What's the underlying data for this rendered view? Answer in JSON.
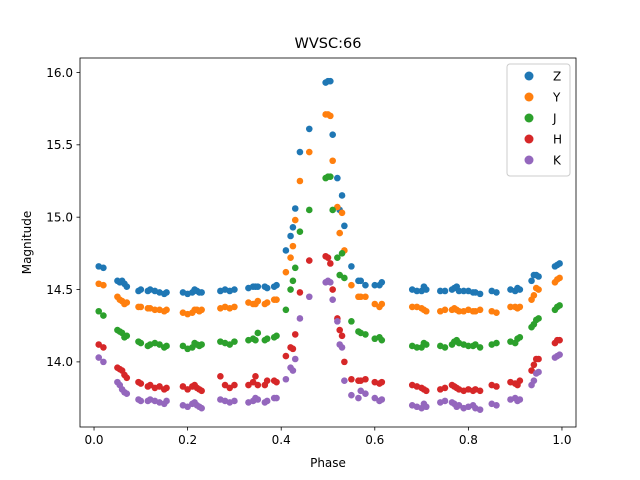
{
  "chart_data": {
    "type": "scatter",
    "title": "WVSC:66",
    "xlabel": "Phase",
    "ylabel": "Magnitude",
    "xlim": [
      -0.03,
      1.03
    ],
    "ylim": [
      13.55,
      16.1
    ],
    "xticks": [
      0.0,
      0.2,
      0.4,
      0.6,
      0.8,
      1.0
    ],
    "xtick_labels": [
      "0.0",
      "0.2",
      "0.4",
      "0.6",
      "0.8",
      "1.0"
    ],
    "yticks": [
      14.0,
      14.5,
      15.0,
      15.5,
      16.0
    ],
    "ytick_labels": [
      "14.0",
      "14.5",
      "15.0",
      "15.5",
      "16.0"
    ],
    "grid": false,
    "legend_position": "top-right",
    "phases": [
      0.01,
      0.02,
      0.05,
      0.055,
      0.06,
      0.065,
      0.07,
      0.095,
      0.1,
      0.115,
      0.12,
      0.13,
      0.14,
      0.15,
      0.155,
      0.19,
      0.2,
      0.21,
      0.215,
      0.22,
      0.225,
      0.23,
      0.27,
      0.28,
      0.29,
      0.3,
      0.33,
      0.34,
      0.345,
      0.35,
      0.365,
      0.37,
      0.385,
      0.39,
      0.41,
      0.42,
      0.425,
      0.43,
      0.44,
      0.46,
      0.495,
      0.5,
      0.505,
      0.51,
      0.52,
      0.525,
      0.53,
      0.535,
      0.55,
      0.565,
      0.57,
      0.58,
      0.6,
      0.61,
      0.615,
      0.68,
      0.69,
      0.7,
      0.705,
      0.71,
      0.74,
      0.75,
      0.765,
      0.77,
      0.775,
      0.78,
      0.79,
      0.8,
      0.81,
      0.815,
      0.825,
      0.85,
      0.86,
      0.89,
      0.9,
      0.905,
      0.91,
      0.935,
      0.94,
      0.945,
      0.95,
      0.985,
      0.99,
      0.995
    ],
    "series": [
      {
        "name": "Z",
        "color": "#1f77b4",
        "values": [
          14.66,
          14.65,
          14.56,
          14.55,
          14.56,
          14.54,
          14.52,
          14.49,
          14.5,
          14.49,
          14.5,
          14.49,
          14.48,
          14.47,
          14.48,
          14.48,
          14.47,
          14.48,
          14.5,
          14.49,
          14.48,
          14.48,
          14.49,
          14.5,
          14.49,
          14.5,
          14.51,
          14.52,
          14.52,
          14.52,
          14.52,
          14.51,
          14.52,
          14.53,
          14.77,
          14.87,
          14.93,
          15.06,
          15.45,
          15.61,
          15.93,
          15.94,
          15.94,
          15.57,
          15.27,
          15.05,
          15.15,
          14.94,
          14.66,
          14.56,
          14.56,
          14.53,
          14.53,
          14.53,
          14.55,
          14.5,
          14.49,
          14.49,
          14.52,
          14.5,
          14.49,
          14.49,
          14.5,
          14.51,
          14.52,
          14.49,
          14.49,
          14.49,
          14.48,
          14.48,
          14.47,
          14.49,
          14.48,
          14.5,
          14.49,
          14.51,
          14.5,
          14.56,
          14.6,
          14.6,
          14.59,
          14.66,
          14.67,
          14.68
        ]
      },
      {
        "name": "Y",
        "color": "#ff7f0e",
        "values": [
          14.54,
          14.53,
          14.45,
          14.43,
          14.42,
          14.4,
          14.41,
          14.38,
          14.38,
          14.37,
          14.37,
          14.36,
          14.36,
          14.35,
          14.36,
          14.34,
          14.33,
          14.34,
          14.36,
          14.36,
          14.35,
          14.36,
          14.37,
          14.38,
          14.37,
          14.38,
          14.41,
          14.4,
          14.4,
          14.42,
          14.4,
          14.41,
          14.43,
          14.43,
          14.62,
          14.72,
          14.8,
          14.98,
          15.25,
          15.45,
          15.71,
          15.71,
          15.7,
          15.39,
          15.07,
          14.89,
          15.03,
          14.77,
          14.53,
          14.45,
          14.45,
          14.45,
          14.4,
          14.38,
          14.4,
          14.38,
          14.38,
          14.37,
          14.36,
          14.35,
          14.35,
          14.36,
          14.36,
          14.37,
          14.36,
          14.35,
          14.35,
          14.36,
          14.35,
          14.35,
          14.36,
          14.35,
          14.34,
          14.38,
          14.38,
          14.37,
          14.38,
          14.43,
          14.46,
          14.51,
          14.5,
          14.55,
          14.57,
          14.58
        ]
      },
      {
        "name": "J",
        "color": "#2ca02c",
        "values": [
          14.35,
          14.32,
          14.22,
          14.21,
          14.2,
          14.17,
          14.18,
          14.14,
          14.13,
          14.11,
          14.12,
          14.13,
          14.12,
          14.1,
          14.11,
          14.11,
          14.09,
          14.1,
          14.13,
          14.12,
          14.11,
          14.12,
          14.14,
          14.13,
          14.12,
          14.14,
          14.15,
          14.16,
          14.15,
          14.2,
          14.15,
          14.16,
          14.17,
          14.18,
          14.36,
          14.5,
          14.56,
          14.65,
          14.9,
          15.05,
          15.27,
          15.28,
          15.28,
          15.05,
          14.72,
          14.6,
          14.75,
          14.58,
          14.28,
          14.21,
          14.2,
          14.19,
          14.16,
          14.17,
          14.15,
          14.11,
          14.1,
          14.1,
          14.13,
          14.12,
          14.11,
          14.1,
          14.12,
          14.14,
          14.15,
          14.13,
          14.12,
          14.11,
          14.11,
          14.12,
          14.1,
          14.12,
          14.13,
          14.14,
          14.13,
          14.16,
          14.17,
          14.24,
          14.26,
          14.29,
          14.3,
          14.36,
          14.38,
          14.39
        ]
      },
      {
        "name": "H",
        "color": "#d62728",
        "values": [
          14.12,
          14.1,
          13.96,
          13.95,
          13.94,
          13.91,
          13.89,
          13.86,
          13.85,
          13.83,
          13.84,
          13.82,
          13.83,
          13.81,
          13.82,
          13.83,
          13.81,
          13.83,
          13.84,
          13.82,
          13.81,
          13.8,
          13.9,
          13.84,
          13.82,
          13.84,
          13.84,
          13.86,
          13.9,
          13.84,
          13.84,
          13.87,
          13.87,
          13.86,
          14.04,
          14.1,
          14.09,
          14.19,
          14.48,
          14.7,
          14.73,
          14.72,
          14.68,
          14.5,
          14.3,
          14.22,
          14.18,
          14.0,
          13.88,
          13.87,
          13.87,
          13.88,
          13.86,
          13.85,
          13.86,
          13.84,
          13.83,
          13.82,
          13.81,
          13.8,
          13.81,
          13.82,
          13.84,
          13.83,
          13.82,
          13.81,
          13.8,
          13.81,
          13.8,
          13.81,
          13.8,
          13.84,
          13.83,
          13.86,
          13.85,
          13.84,
          13.87,
          13.94,
          13.98,
          14.02,
          14.02,
          14.13,
          14.15,
          14.15
        ]
      },
      {
        "name": "K",
        "color": "#9467bd",
        "values": [
          14.03,
          14.0,
          13.86,
          13.84,
          13.81,
          13.79,
          13.78,
          13.74,
          13.73,
          13.73,
          13.74,
          13.73,
          13.72,
          13.71,
          13.73,
          13.7,
          13.69,
          13.71,
          13.72,
          13.7,
          13.69,
          13.68,
          13.74,
          13.73,
          13.72,
          13.73,
          13.72,
          13.73,
          13.75,
          13.74,
          13.72,
          13.73,
          13.75,
          13.75,
          13.88,
          13.96,
          13.94,
          14.02,
          14.3,
          14.45,
          14.55,
          14.56,
          14.55,
          14.43,
          14.28,
          14.12,
          14.1,
          13.87,
          13.77,
          13.75,
          13.8,
          13.78,
          13.75,
          13.73,
          13.74,
          13.7,
          13.69,
          13.68,
          13.71,
          13.69,
          13.72,
          13.73,
          13.72,
          13.71,
          13.69,
          13.7,
          13.68,
          13.69,
          13.7,
          13.68,
          13.67,
          13.71,
          13.7,
          13.74,
          13.75,
          13.73,
          13.74,
          13.84,
          13.87,
          13.92,
          13.93,
          14.03,
          14.04,
          14.05
        ]
      }
    ]
  }
}
